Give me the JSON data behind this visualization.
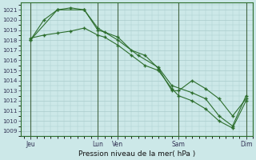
{
  "title": "Pression niveau de la mer( hPa )",
  "ylabel_values": [
    1009,
    1010,
    1011,
    1012,
    1013,
    1014,
    1015,
    1016,
    1017,
    1018,
    1019,
    1020,
    1021
  ],
  "ylim": [
    1008.5,
    1021.7
  ],
  "xlim": [
    -0.2,
    17.0
  ],
  "background_color": "#cce8e8",
  "grid_color": "#aacccc",
  "line_color": "#2d6e2d",
  "major_xtick_positions": [
    0.5,
    5.5,
    7.0,
    11.5,
    16.5
  ],
  "major_xtick_labels": [
    "Jeu",
    "Lun",
    "Ven",
    "Sam",
    "Dim"
  ],
  "series1_x": [
    0.5,
    1.5,
    2.5,
    3.5,
    4.5,
    5.5,
    6.0,
    7.0,
    8.0,
    9.0,
    10.0,
    11.0,
    11.5,
    12.5,
    13.5,
    14.5,
    15.5,
    16.5
  ],
  "series1_y": [
    1018.0,
    1020.0,
    1021.0,
    1021.2,
    1021.0,
    1019.0,
    1018.8,
    1018.3,
    1017.0,
    1016.5,
    1015.2,
    1013.0,
    1013.0,
    1014.0,
    1013.2,
    1012.2,
    1010.5,
    1012.2
  ],
  "series2_x": [
    0.5,
    1.5,
    2.5,
    3.5,
    4.5,
    5.5,
    6.0,
    7.0,
    8.0,
    9.0,
    10.0,
    11.0,
    11.5,
    12.5,
    13.5,
    14.5,
    15.5,
    16.5
  ],
  "series2_y": [
    1018.2,
    1018.5,
    1018.7,
    1018.9,
    1019.2,
    1018.5,
    1018.3,
    1017.5,
    1016.5,
    1015.5,
    1015.0,
    1013.2,
    1012.5,
    1012.0,
    1011.2,
    1010.0,
    1009.3,
    1012.0
  ],
  "series3_x": [
    0.5,
    2.5,
    4.5,
    5.5,
    7.0,
    8.5,
    10.0,
    11.0,
    12.5,
    13.5,
    14.5,
    15.5,
    16.5
  ],
  "series3_y": [
    1018.0,
    1021.0,
    1021.0,
    1019.2,
    1018.0,
    1016.5,
    1015.3,
    1013.5,
    1012.8,
    1012.2,
    1010.5,
    1009.5,
    1012.5
  ],
  "vline_positions": [
    0.5,
    5.5,
    7.0,
    11.5,
    16.5
  ]
}
